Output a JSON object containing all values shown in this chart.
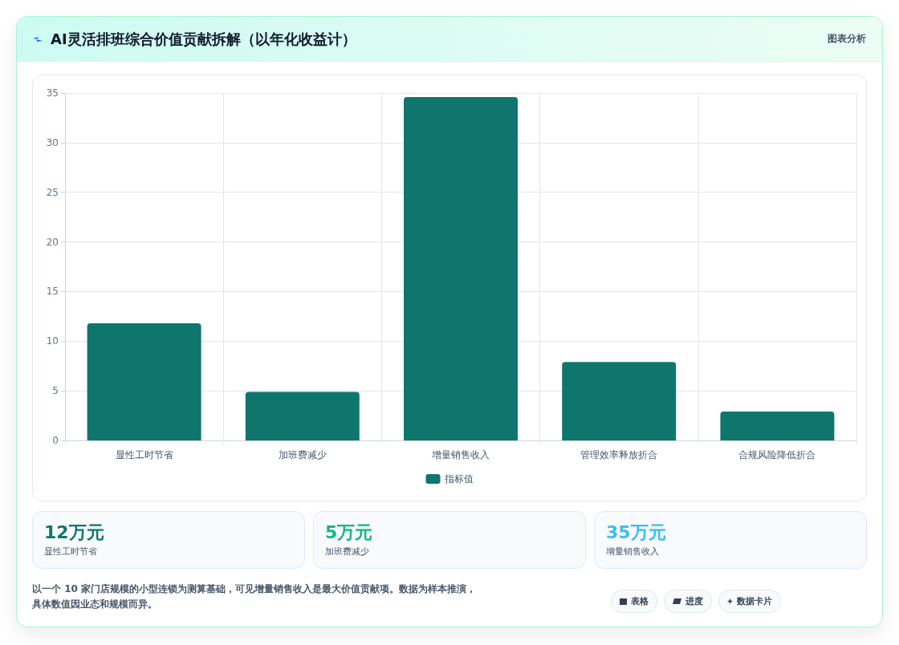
{
  "chart_data": {
    "type": "bar",
    "title": "AI灵活排班综合价值贡献拆解（以年化收益计）",
    "categories": [
      "显性工时节省",
      "加班费减少",
      "增量销售收入",
      "管理效率释放折合",
      "合规风险降低折合"
    ],
    "series": [
      {
        "name": "指标值",
        "color": "#0f766e",
        "values": [
          11.8,
          4.9,
          34.6,
          7.9,
          2.9
        ]
      }
    ],
    "ylim": [
      0,
      35
    ],
    "yticks": [
      0,
      5,
      10,
      15,
      20,
      25,
      30,
      35
    ],
    "grid": true,
    "legend": "bottom",
    "annotations": [
      "图表分析",
      "12万元",
      "显性工时节省",
      "5万元",
      "加班费减少",
      "35万元",
      "增量销售收入",
      "以一个 10 家门店规模的小型连锁为测算基础，可见增量销售收入是最大价值贡献项。数据为样本推演，具体数值因业态和规模而异。",
      "表格",
      "进度",
      "数据卡片"
    ]
  }
}
